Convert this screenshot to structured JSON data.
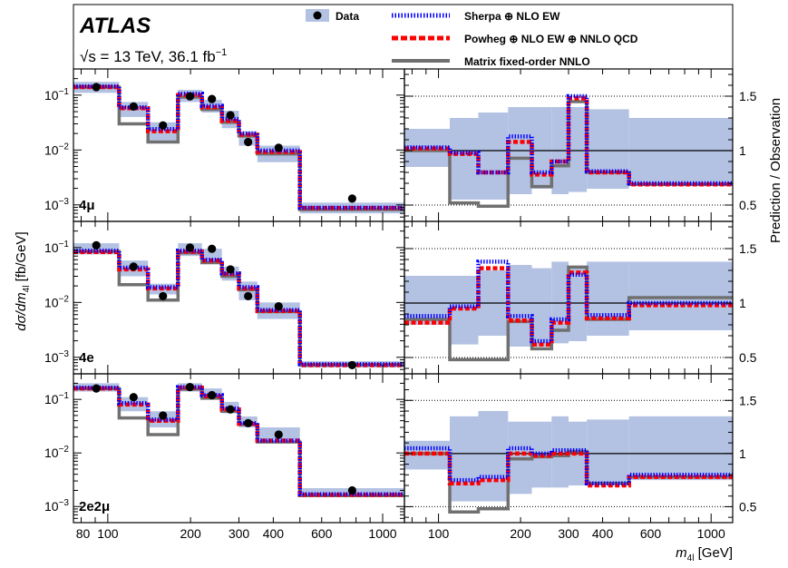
{
  "header": {
    "experiment": "ATLAS",
    "energy_label": "√s = 13 TeV, 36.1 fb",
    "lumi_exp": "−1"
  },
  "legend": {
    "data": "Data",
    "sherpa": "Sherpa ⊕ NLO EW",
    "powheg": "Powheg ⊕ NLO EW ⊕ NNLO QCD",
    "matrix": "Matrix fixed-order NNLO"
  },
  "axes": {
    "y_left_label": "dσ/dm",
    "y_left_sub": "4l",
    "y_left_unit": " [fb/GeV]",
    "y_right_label": "Prediction / Observation",
    "x_label_m": "m",
    "x_label_sub": "4l",
    "x_label_unit": " [GeV]"
  },
  "colors": {
    "band": "#b3c2e3",
    "sherpa": "#0000ff",
    "powheg": "#ff0000",
    "matrix": "#707070",
    "data": "#000000"
  },
  "chart_data": {
    "type": "line",
    "x_scale": "log",
    "x_range": [
      75,
      1200
    ],
    "x_ticks": [
      80,
      100,
      200,
      300,
      400,
      600,
      1000
    ],
    "x_tick_labels_left": [
      "80",
      "100",
      "200",
      "300",
      "400",
      "600",
      "1000"
    ],
    "x_tick_labels_right": [
      "100",
      "200",
      "300",
      "400",
      "600",
      "1000"
    ],
    "bin_edges": [
      75,
      110,
      140,
      180,
      220,
      260,
      300,
      350,
      500,
      1200
    ],
    "cross_section_ylim": [
      0.0005,
      0.3
    ],
    "cross_section_ticks": [
      "10−1",
      "10−2",
      "10−3"
    ],
    "ratio_ylim": [
      0.35,
      1.75
    ],
    "ratio_ticks": [
      "1.5",
      "1",
      "0.5"
    ],
    "ratio_reference_line": 1.0,
    "ratio_dotted_lines": [
      0.5,
      1.5
    ],
    "panels": [
      {
        "channel": "4μ",
        "data": [
          0.14,
          0.062,
          0.028,
          0.095,
          0.085,
          0.043,
          0.014,
          0.011,
          0.0013
        ],
        "band": [
          [
            0.11,
            0.175
          ],
          [
            0.04,
            0.075
          ],
          [
            0.015,
            0.032
          ],
          [
            0.075,
            0.125
          ],
          [
            0.048,
            0.082
          ],
          [
            0.025,
            0.052
          ],
          [
            0.012,
            0.022
          ],
          [
            0.006,
            0.012
          ],
          [
            0.0007,
            0.0011
          ]
        ],
        "sherpa": [
          0.145,
          0.06,
          0.024,
          0.106,
          0.064,
          0.037,
          0.02,
          0.0098,
          0.00089
        ],
        "powheg": [
          0.14,
          0.058,
          0.022,
          0.1,
          0.06,
          0.034,
          0.019,
          0.0092,
          0.00088
        ],
        "matrix": [
          0.14,
          0.03,
          0.014,
          0.092,
          0.055,
          0.032,
          0.018,
          0.0085,
          0.00082
        ],
        "ratio_band": [
          [
            0.85,
            1.2
          ],
          [
            0.55,
            1.3
          ],
          [
            0.55,
            1.35
          ],
          [
            0.6,
            1.4
          ],
          [
            0.65,
            1.4
          ],
          [
            0.6,
            1.4
          ],
          [
            0.62,
            1.4
          ],
          [
            0.65,
            1.38
          ],
          [
            0.7,
            1.3
          ]
        ],
        "ratio_sherpa": [
          1.03,
          0.98,
          0.8,
          1.13,
          0.8,
          0.9,
          1.5,
          0.81,
          0.7
        ],
        "ratio_powheg": [
          1.02,
          0.97,
          0.8,
          1.08,
          0.78,
          0.9,
          1.48,
          0.8,
          0.69
        ],
        "ratio_matrix": [
          1.0,
          0.52,
          0.49,
          0.93,
          0.67,
          0.86,
          1.45,
          0.8,
          0.69
        ]
      },
      {
        "channel": "4e",
        "data": [
          0.11,
          0.045,
          0.013,
          0.1,
          0.095,
          0.04,
          0.013,
          0.0085,
          0.00072
        ],
        "band": [
          [
            0.075,
            0.12
          ],
          [
            0.03,
            0.058
          ],
          [
            0.014,
            0.022
          ],
          [
            0.07,
            0.12
          ],
          [
            0.055,
            0.095
          ],
          [
            0.025,
            0.045
          ],
          [
            0.011,
            0.024
          ],
          [
            0.005,
            0.01
          ],
          [
            0.00065,
            0.00085
          ]
        ],
        "sherpa": [
          0.088,
          0.043,
          0.019,
          0.088,
          0.06,
          0.034,
          0.019,
          0.0073,
          0.00075
        ],
        "powheg": [
          0.083,
          0.04,
          0.018,
          0.084,
          0.058,
          0.033,
          0.018,
          0.007,
          0.00072
        ],
        "matrix": [
          0.085,
          0.021,
          0.011,
          0.08,
          0.053,
          0.03,
          0.017,
          0.0068,
          0.00073
        ],
        "ratio_band": [
          [
            0.8,
            1.25
          ],
          [
            0.62,
            1.25
          ],
          [
            0.7,
            1.3
          ],
          [
            0.6,
            1.35
          ],
          [
            0.6,
            1.32
          ],
          [
            0.63,
            1.38
          ],
          [
            0.65,
            1.33
          ],
          [
            0.7,
            1.38
          ],
          [
            0.75,
            1.38
          ]
        ],
        "ratio_sherpa": [
          0.88,
          0.97,
          1.38,
          0.88,
          0.65,
          0.85,
          1.26,
          0.89,
          1.0
        ],
        "ratio_powheg": [
          0.82,
          0.95,
          1.32,
          0.84,
          0.62,
          0.82,
          1.28,
          0.86,
          0.98
        ],
        "ratio_matrix": [
          0.85,
          0.48,
          0.48,
          0.83,
          0.58,
          0.75,
          1.33,
          0.85,
          1.05
        ]
      },
      {
        "channel": "2e2μ",
        "data": [
          0.16,
          0.11,
          0.05,
          0.17,
          0.12,
          0.065,
          0.036,
          0.022,
          0.002
        ],
        "band": [
          [
            0.14,
            0.2
          ],
          [
            0.06,
            0.11
          ],
          [
            0.03,
            0.06
          ],
          [
            0.14,
            0.2
          ],
          [
            0.1,
            0.16
          ],
          [
            0.055,
            0.09
          ],
          [
            0.03,
            0.048
          ],
          [
            0.018,
            0.03
          ],
          [
            0.0015,
            0.0022
          ]
        ],
        "sherpa": [
          0.165,
          0.085,
          0.042,
          0.17,
          0.12,
          0.068,
          0.036,
          0.017,
          0.0017
        ],
        "powheg": [
          0.16,
          0.08,
          0.04,
          0.165,
          0.115,
          0.065,
          0.035,
          0.017,
          0.00165
        ],
        "matrix": [
          0.16,
          0.045,
          0.022,
          0.155,
          0.105,
          0.06,
          0.034,
          0.016,
          0.0016
        ],
        "ratio_band": [
          [
            0.85,
            1.12
          ],
          [
            0.55,
            1.35
          ],
          [
            0.55,
            1.4
          ],
          [
            0.62,
            1.3
          ],
          [
            0.68,
            1.3
          ],
          [
            0.68,
            1.35
          ],
          [
            0.7,
            1.3
          ],
          [
            0.72,
            1.32
          ],
          [
            0.75,
            1.35
          ]
        ],
        "ratio_sherpa": [
          1.05,
          0.75,
          0.78,
          1.05,
          1.0,
          1.03,
          1.03,
          0.72,
          0.8
        ],
        "ratio_powheg": [
          1.0,
          0.72,
          0.75,
          1.0,
          0.98,
          1.0,
          1.0,
          0.7,
          0.78
        ],
        "ratio_matrix": [
          1.0,
          0.45,
          0.48,
          0.95,
          0.97,
          0.98,
          1.02,
          0.72,
          0.78
        ]
      }
    ]
  }
}
